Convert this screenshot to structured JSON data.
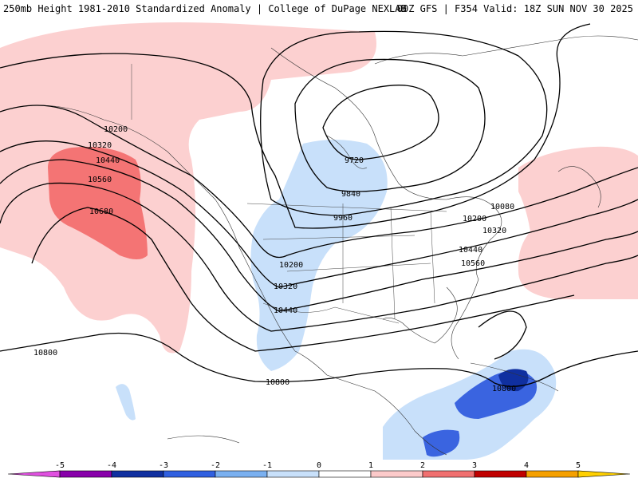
{
  "header": {
    "left": "250mb Height 1981-2010 Standardized Anomaly | College of DuPage NEXLAB",
    "right": "00Z GFS | F354 Valid: 18Z SUN NOV 30 2025"
  },
  "contour_labels": [
    "10200",
    "10320",
    "10440",
    "10560",
    "10680",
    "9720",
    "9840",
    "9960",
    "10200",
    "10320",
    "10440",
    "10200",
    "10320",
    "10440",
    "10560",
    "10080",
    "10800",
    "10800",
    "10800"
  ],
  "legend": {
    "ticks": [
      "-5",
      "-4",
      "-3",
      "-2",
      "-1",
      "0",
      "1",
      "2",
      "3",
      "4",
      "5"
    ],
    "colors": [
      "#e050e0",
      "#8800aa",
      "#1030a0",
      "#3060e0",
      "#7ab0f0",
      "#c8e0fa",
      "#ffffff",
      "#fccaca",
      "#f07070",
      "#c00000",
      "#f5a000",
      "#ffd000"
    ]
  },
  "colors": {
    "pos_light": "#fcd0d0",
    "pos_mid": "#f47474",
    "neg_light": "#c8e0fa",
    "neg_mid": "#3a64e0",
    "neg_dark": "#1030a0"
  }
}
